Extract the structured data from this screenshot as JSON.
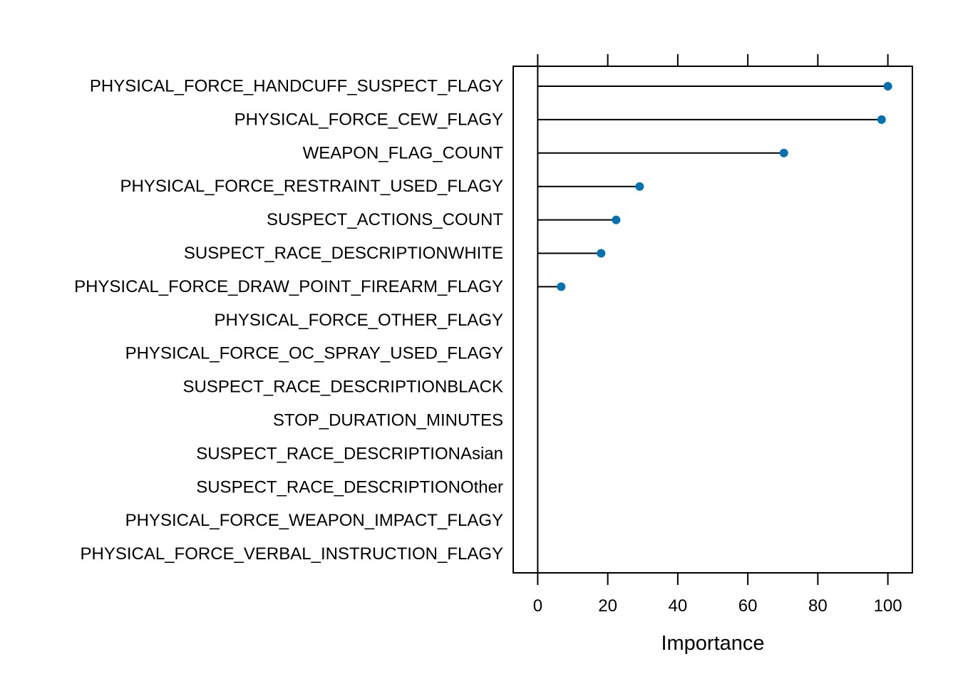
{
  "chart_data": {
    "type": "dot",
    "categories": [
      "PHYSICAL_FORCE_HANDCUFF_SUSPECT_FLAGY",
      "PHYSICAL_FORCE_CEW_FLAGY",
      "WEAPON_FLAG_COUNT",
      "PHYSICAL_FORCE_RESTRAINT_USED_FLAGY",
      "SUSPECT_ACTIONS_COUNT",
      "SUSPECT_RACE_DESCRIPTIONWHITE",
      "PHYSICAL_FORCE_DRAW_POINT_FIREARM_FLAGY",
      "PHYSICAL_FORCE_OTHER_FLAGY",
      "PHYSICAL_FORCE_OC_SPRAY_USED_FLAGY",
      "SUSPECT_RACE_DESCRIPTIONBLACK",
      "STOP_DURATION_MINUTES",
      "SUSPECT_RACE_DESCRIPTIONAsian",
      "SUSPECT_RACE_DESCRIPTIONOther",
      "PHYSICAL_FORCE_WEAPON_IMPACT_FLAGY",
      "PHYSICAL_FORCE_VERBAL_INSTRUCTION_FLAGY"
    ],
    "values": [
      100,
      98.2,
      70.3,
      29.1,
      22.4,
      18.1,
      6.7,
      0,
      0,
      0,
      0,
      0,
      0,
      0,
      0
    ],
    "xlabel": "Importance",
    "ylabel": "",
    "xlim": [
      -7,
      107
    ],
    "xticks": [
      "0",
      "20",
      "40",
      "60",
      "80",
      "100"
    ],
    "point_color": "#0072B2",
    "line_color": "#000000",
    "grid": false
  }
}
